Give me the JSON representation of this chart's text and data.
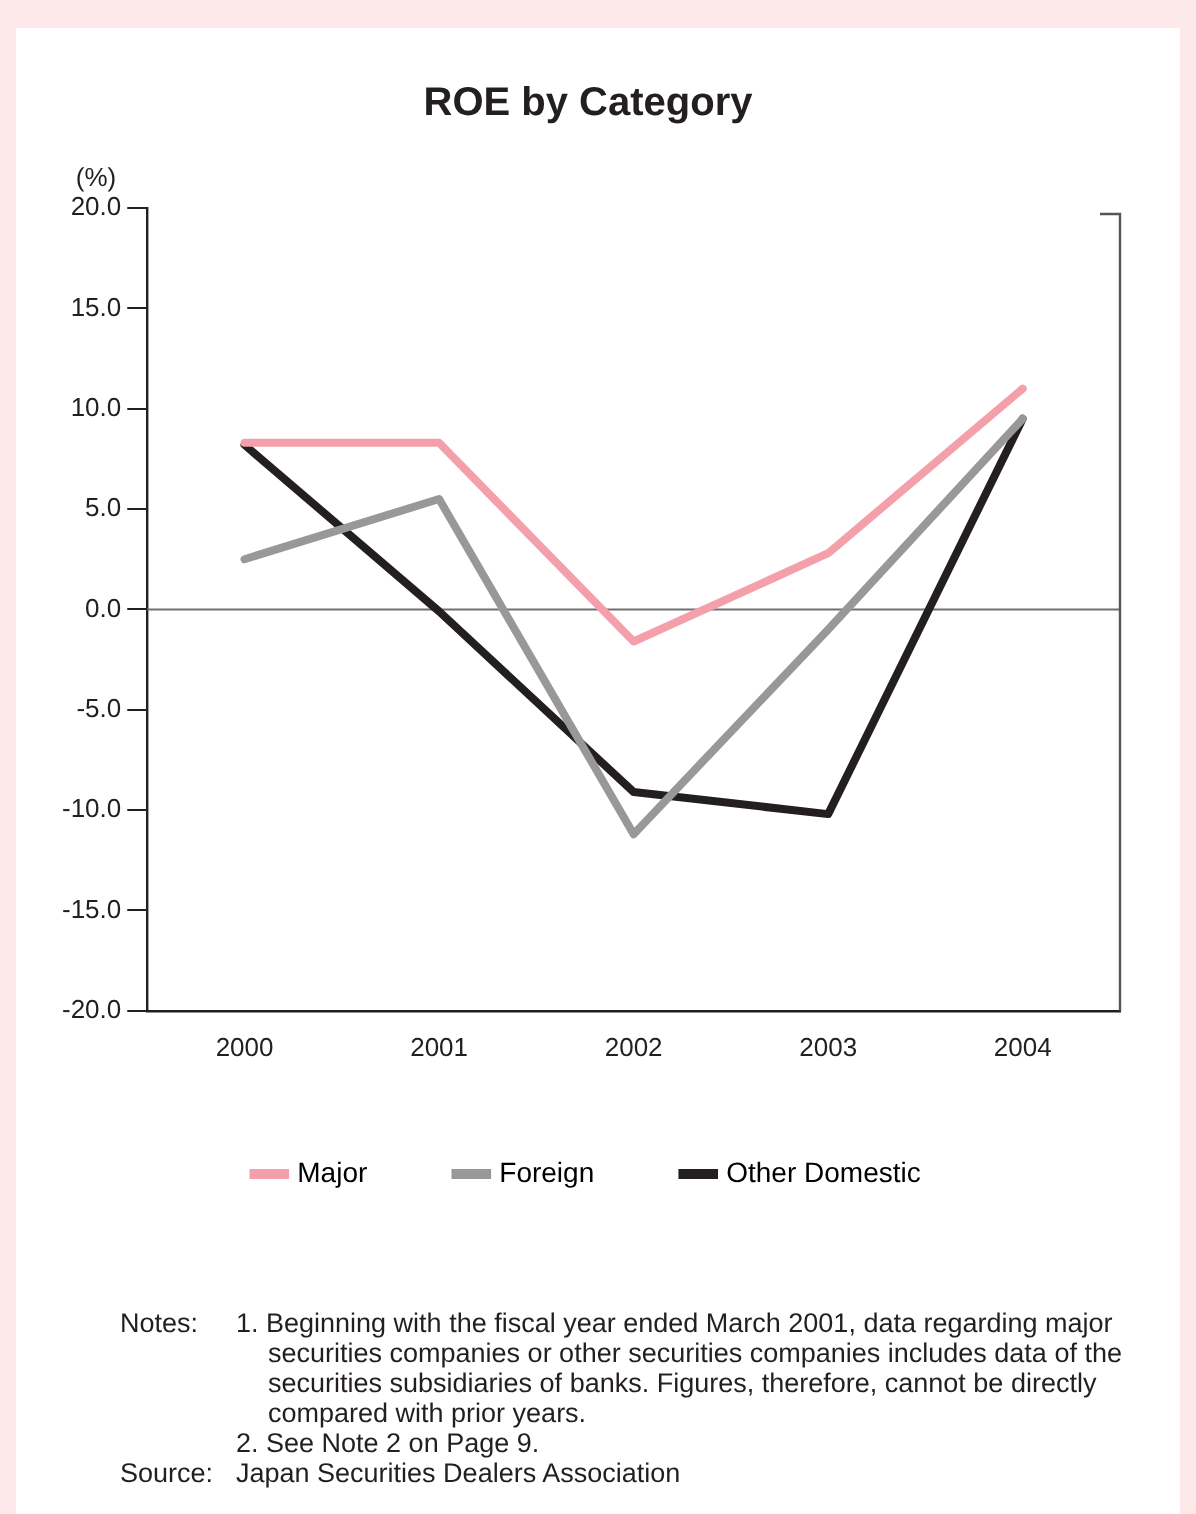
{
  "chart_data": {
    "type": "line",
    "title": "ROE by Category",
    "ylabel": "(%)",
    "categories": [
      "2000",
      "2001",
      "2002",
      "2003",
      "2004"
    ],
    "series": [
      {
        "name": "Major",
        "color": "#f4a0aa",
        "values": [
          8.3,
          8.3,
          -1.6,
          2.8,
          11.0
        ]
      },
      {
        "name": "Foreign",
        "color": "#98989b",
        "values": [
          2.5,
          5.5,
          -11.2,
          -1.0,
          9.5
        ]
      },
      {
        "name": "Other Domestic",
        "color": "#231f20",
        "values": [
          8.2,
          -0.1,
          -9.1,
          -10.2,
          9.5
        ]
      }
    ],
    "ylim": [
      -20,
      20
    ],
    "yticks": [
      {
        "value": -20,
        "label": "-20.0"
      },
      {
        "value": -15,
        "label": "-15.0"
      },
      {
        "value": -10,
        "label": "-10.0"
      },
      {
        "value": -5,
        "label": "-5.0"
      },
      {
        "value": 0,
        "label": "0.0"
      },
      {
        "value": 5,
        "label": "5.0"
      },
      {
        "value": 10,
        "label": "10.0"
      },
      {
        "value": 15,
        "label": "15.0"
      },
      {
        "value": 20,
        "label": "20.0"
      }
    ],
    "ref_lines": [
      {
        "axis": "y",
        "value": 0,
        "color": "#707070"
      }
    ],
    "grid": false,
    "legend": "bottom",
    "marker": "none",
    "line_style": "solid",
    "annotations": [
      "Notes:",
      "1. Beginning with the fiscal year ended March 2001, data regarding major securities companies or other securities companies includes data of the securities subsidiaries of banks. Figures, therefore, cannot be directly compared with prior years.",
      "2. See Note 2 on Page 9.",
      "Source:",
      "Japan Securities Dealers Association"
    ]
  }
}
